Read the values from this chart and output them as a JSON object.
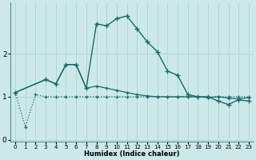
{
  "xlabel": "Humidex (Indice chaleur)",
  "ylabel": "",
  "background_color": "#cce8e8",
  "line_color": "#1a6b6b",
  "x_ticks": [
    0,
    1,
    2,
    3,
    4,
    5,
    6,
    7,
    8,
    9,
    10,
    11,
    12,
    13,
    14,
    15,
    16,
    17,
    18,
    19,
    20,
    21,
    22,
    23
  ],
  "y_ticks": [
    0,
    1,
    2
  ],
  "ylim": [
    -0.05,
    3.2
  ],
  "xlim": [
    -0.5,
    23.5
  ],
  "line1_x": [
    0,
    1,
    2,
    3,
    4,
    5,
    6,
    7,
    8,
    9,
    10,
    11,
    12,
    13,
    14,
    15,
    16,
    17,
    18,
    19,
    20,
    21,
    22,
    23
  ],
  "line1_y": [
    1.1,
    0.3,
    1.05,
    1.0,
    1.0,
    1.0,
    1.0,
    1.0,
    1.0,
    1.0,
    1.0,
    1.0,
    1.0,
    1.0,
    1.0,
    1.0,
    1.0,
    1.0,
    1.0,
    1.0,
    1.0,
    1.0,
    1.0,
    1.0
  ],
  "line2_x": [
    0,
    3,
    4,
    5,
    6,
    7,
    8,
    9,
    10,
    11,
    12,
    13,
    14,
    15,
    16,
    17,
    18,
    19,
    20,
    21,
    22,
    23
  ],
  "line2_y": [
    1.1,
    1.4,
    1.3,
    1.75,
    1.75,
    1.2,
    1.25,
    1.2,
    1.15,
    1.1,
    1.05,
    1.02,
    1.0,
    1.0,
    1.0,
    1.0,
    1.0,
    0.98,
    1.0,
    0.97,
    0.95,
    0.98
  ],
  "line3_x": [
    0,
    3,
    4,
    5,
    6,
    7,
    8,
    9,
    10,
    11,
    12,
    13,
    14,
    15,
    16,
    17,
    18,
    19,
    20,
    21,
    22,
    23
  ],
  "line3_y": [
    1.1,
    1.4,
    1.3,
    1.75,
    1.75,
    1.2,
    2.7,
    2.65,
    2.82,
    2.88,
    2.58,
    2.28,
    2.05,
    1.6,
    1.5,
    1.05,
    1.0,
    1.0,
    0.9,
    0.82,
    0.93,
    0.9
  ]
}
